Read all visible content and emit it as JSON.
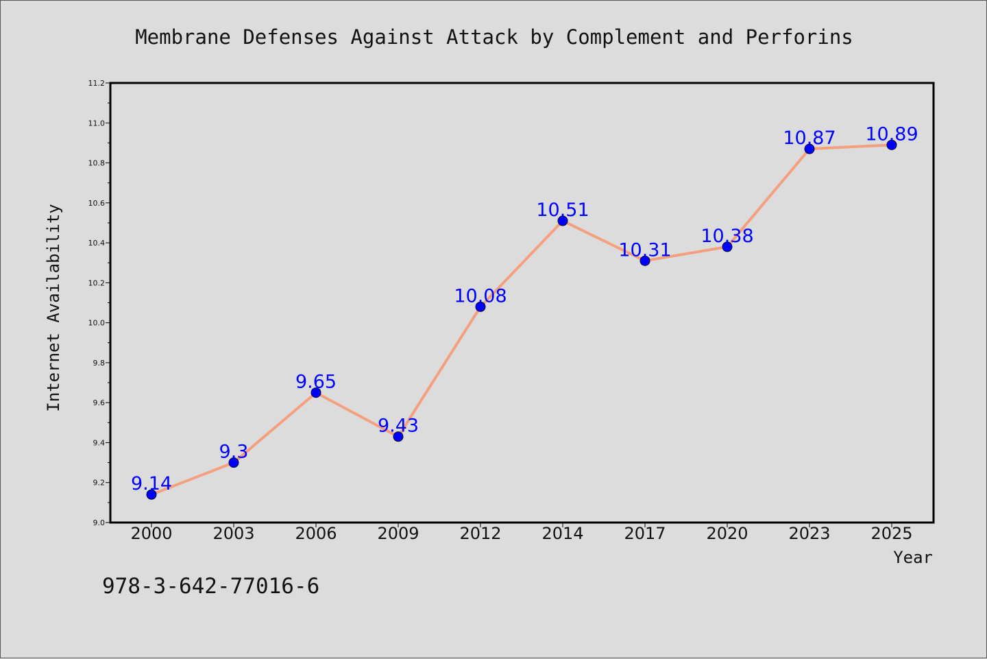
{
  "footer_text": "978-3-642-77016-6",
  "colors": {
    "background": "#dcdcdc",
    "line": "#f4a07e",
    "marker": "#0000ff",
    "data_label": "#0000ff",
    "axis": "#000000"
  },
  "chart_data": {
    "type": "line",
    "title": "Membrane Defenses Against Attack by Complement and Perforins",
    "xlabel": "Year",
    "ylabel": "Internet Availability",
    "categories": [
      "2000",
      "2003",
      "2006",
      "2009",
      "2012",
      "2014",
      "2017",
      "2020",
      "2023",
      "2025"
    ],
    "series": [
      {
        "values": [
          9.14,
          9.3,
          9.65,
          9.43,
          10.08,
          10.51,
          10.31,
          10.38,
          10.87,
          10.89
        ],
        "data_labels": [
          "9.14",
          "9.3",
          "9.65",
          "9.43",
          "10.08",
          "10.51",
          "10.31",
          "10.38",
          "10.87",
          "10.89"
        ]
      }
    ],
    "ylim": [
      9.0,
      11.2
    ],
    "yticks": [
      "9.0",
      "9.2",
      "9.4",
      "9.6",
      "9.8",
      "10.0",
      "10.2",
      "10.4",
      "10.6",
      "10.8",
      "11.0",
      "11.2"
    ],
    "grid": false,
    "legend": "none"
  }
}
